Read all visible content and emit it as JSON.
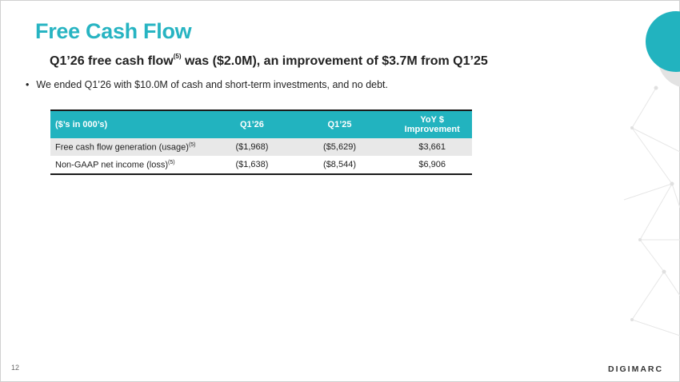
{
  "header": {
    "title": "Free Cash Flow",
    "subtitle": {
      "before": "Q1’26 free cash flow",
      "note": "(5)",
      "after": " was ($2.0M), an improvement of $3.7M from Q1’25"
    }
  },
  "bullets": [
    "We ended Q1’26 with $10.0M of cash and short-term investments, and no debt."
  ],
  "table": {
    "columns": [
      "($’s in 000’s)",
      "Q1’26",
      "Q1’25",
      "YoY $ Improvement"
    ],
    "rows": [
      {
        "label": "Free cash flow generation (usage)",
        "note": "(5)",
        "values": [
          "($1,968)",
          "($5,629)",
          "$3,661"
        ]
      },
      {
        "label": "Non-GAAP net income (loss)",
        "note": "(5)",
        "values": [
          "($1,638)",
          "($8,544)",
          "$6,906"
        ]
      }
    ]
  },
  "footer": {
    "page": "12",
    "logo": "DIGIMARC"
  }
}
